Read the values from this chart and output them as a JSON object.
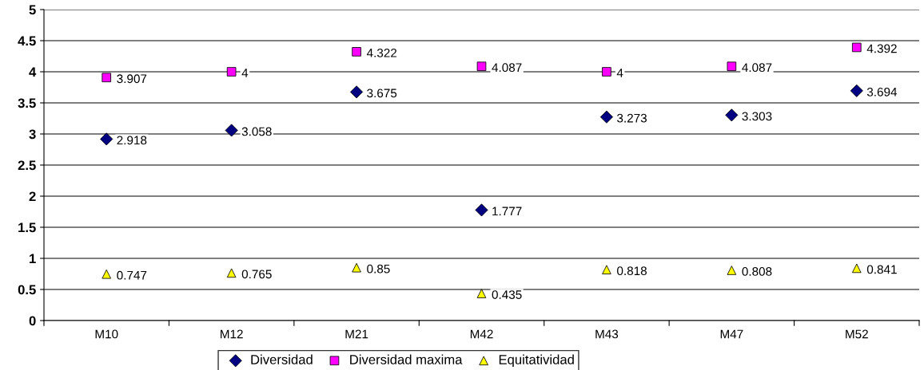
{
  "chart_data": {
    "type": "scatter",
    "categories": [
      "M10",
      "M12",
      "M21",
      "M42",
      "M43",
      "M47",
      "M52"
    ],
    "series": [
      {
        "name": "Diversidad",
        "color": "#000080",
        "marker": "diamond",
        "values": [
          2.918,
          3.058,
          3.675,
          1.777,
          3.273,
          3.303,
          3.694
        ]
      },
      {
        "name": "Diversidad maxima",
        "color": "#ff00ff",
        "marker": "square",
        "values": [
          3.907,
          4,
          4.322,
          4.087,
          4,
          4.087,
          4.392
        ]
      },
      {
        "name": "Equitatividad",
        "color": "#ffff00",
        "marker": "triangle",
        "values": [
          0.747,
          0.765,
          0.85,
          0.435,
          0.818,
          0.808,
          0.841
        ]
      }
    ],
    "ylim": [
      0,
      5
    ],
    "yticks": [
      0,
      0.5,
      1,
      1.5,
      2,
      2.5,
      3,
      3.5,
      4,
      4.5,
      5
    ],
    "grid": "y",
    "legend": "bottom",
    "data_labels": true
  }
}
